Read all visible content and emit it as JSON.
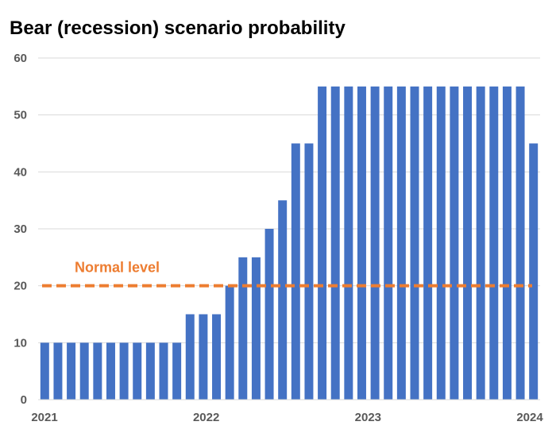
{
  "chart_data": {
    "type": "bar",
    "title": "Bear (recession) scenario probability",
    "xlabel": "",
    "ylabel": "",
    "ylim": [
      0,
      60
    ],
    "yticks": [
      0,
      10,
      20,
      30,
      40,
      50,
      60
    ],
    "x_tick_labels": [
      "2021",
      "2022",
      "2023",
      "2024"
    ],
    "grid": true,
    "legend": "none",
    "bar_color": "#4472C4",
    "series": [
      {
        "values": [
          10,
          10,
          10,
          10,
          10,
          10,
          10,
          10,
          10,
          10,
          10,
          15,
          15,
          15,
          20,
          25,
          25,
          30,
          35,
          45,
          45,
          55,
          55,
          55,
          55,
          55,
          55,
          55,
          55,
          55,
          55,
          55,
          55,
          55,
          55,
          55,
          55,
          45
        ]
      }
    ],
    "reference_line": {
      "label": "Normal level",
      "value": 20,
      "color": "#ED7D31",
      "style": "dashed"
    }
  }
}
